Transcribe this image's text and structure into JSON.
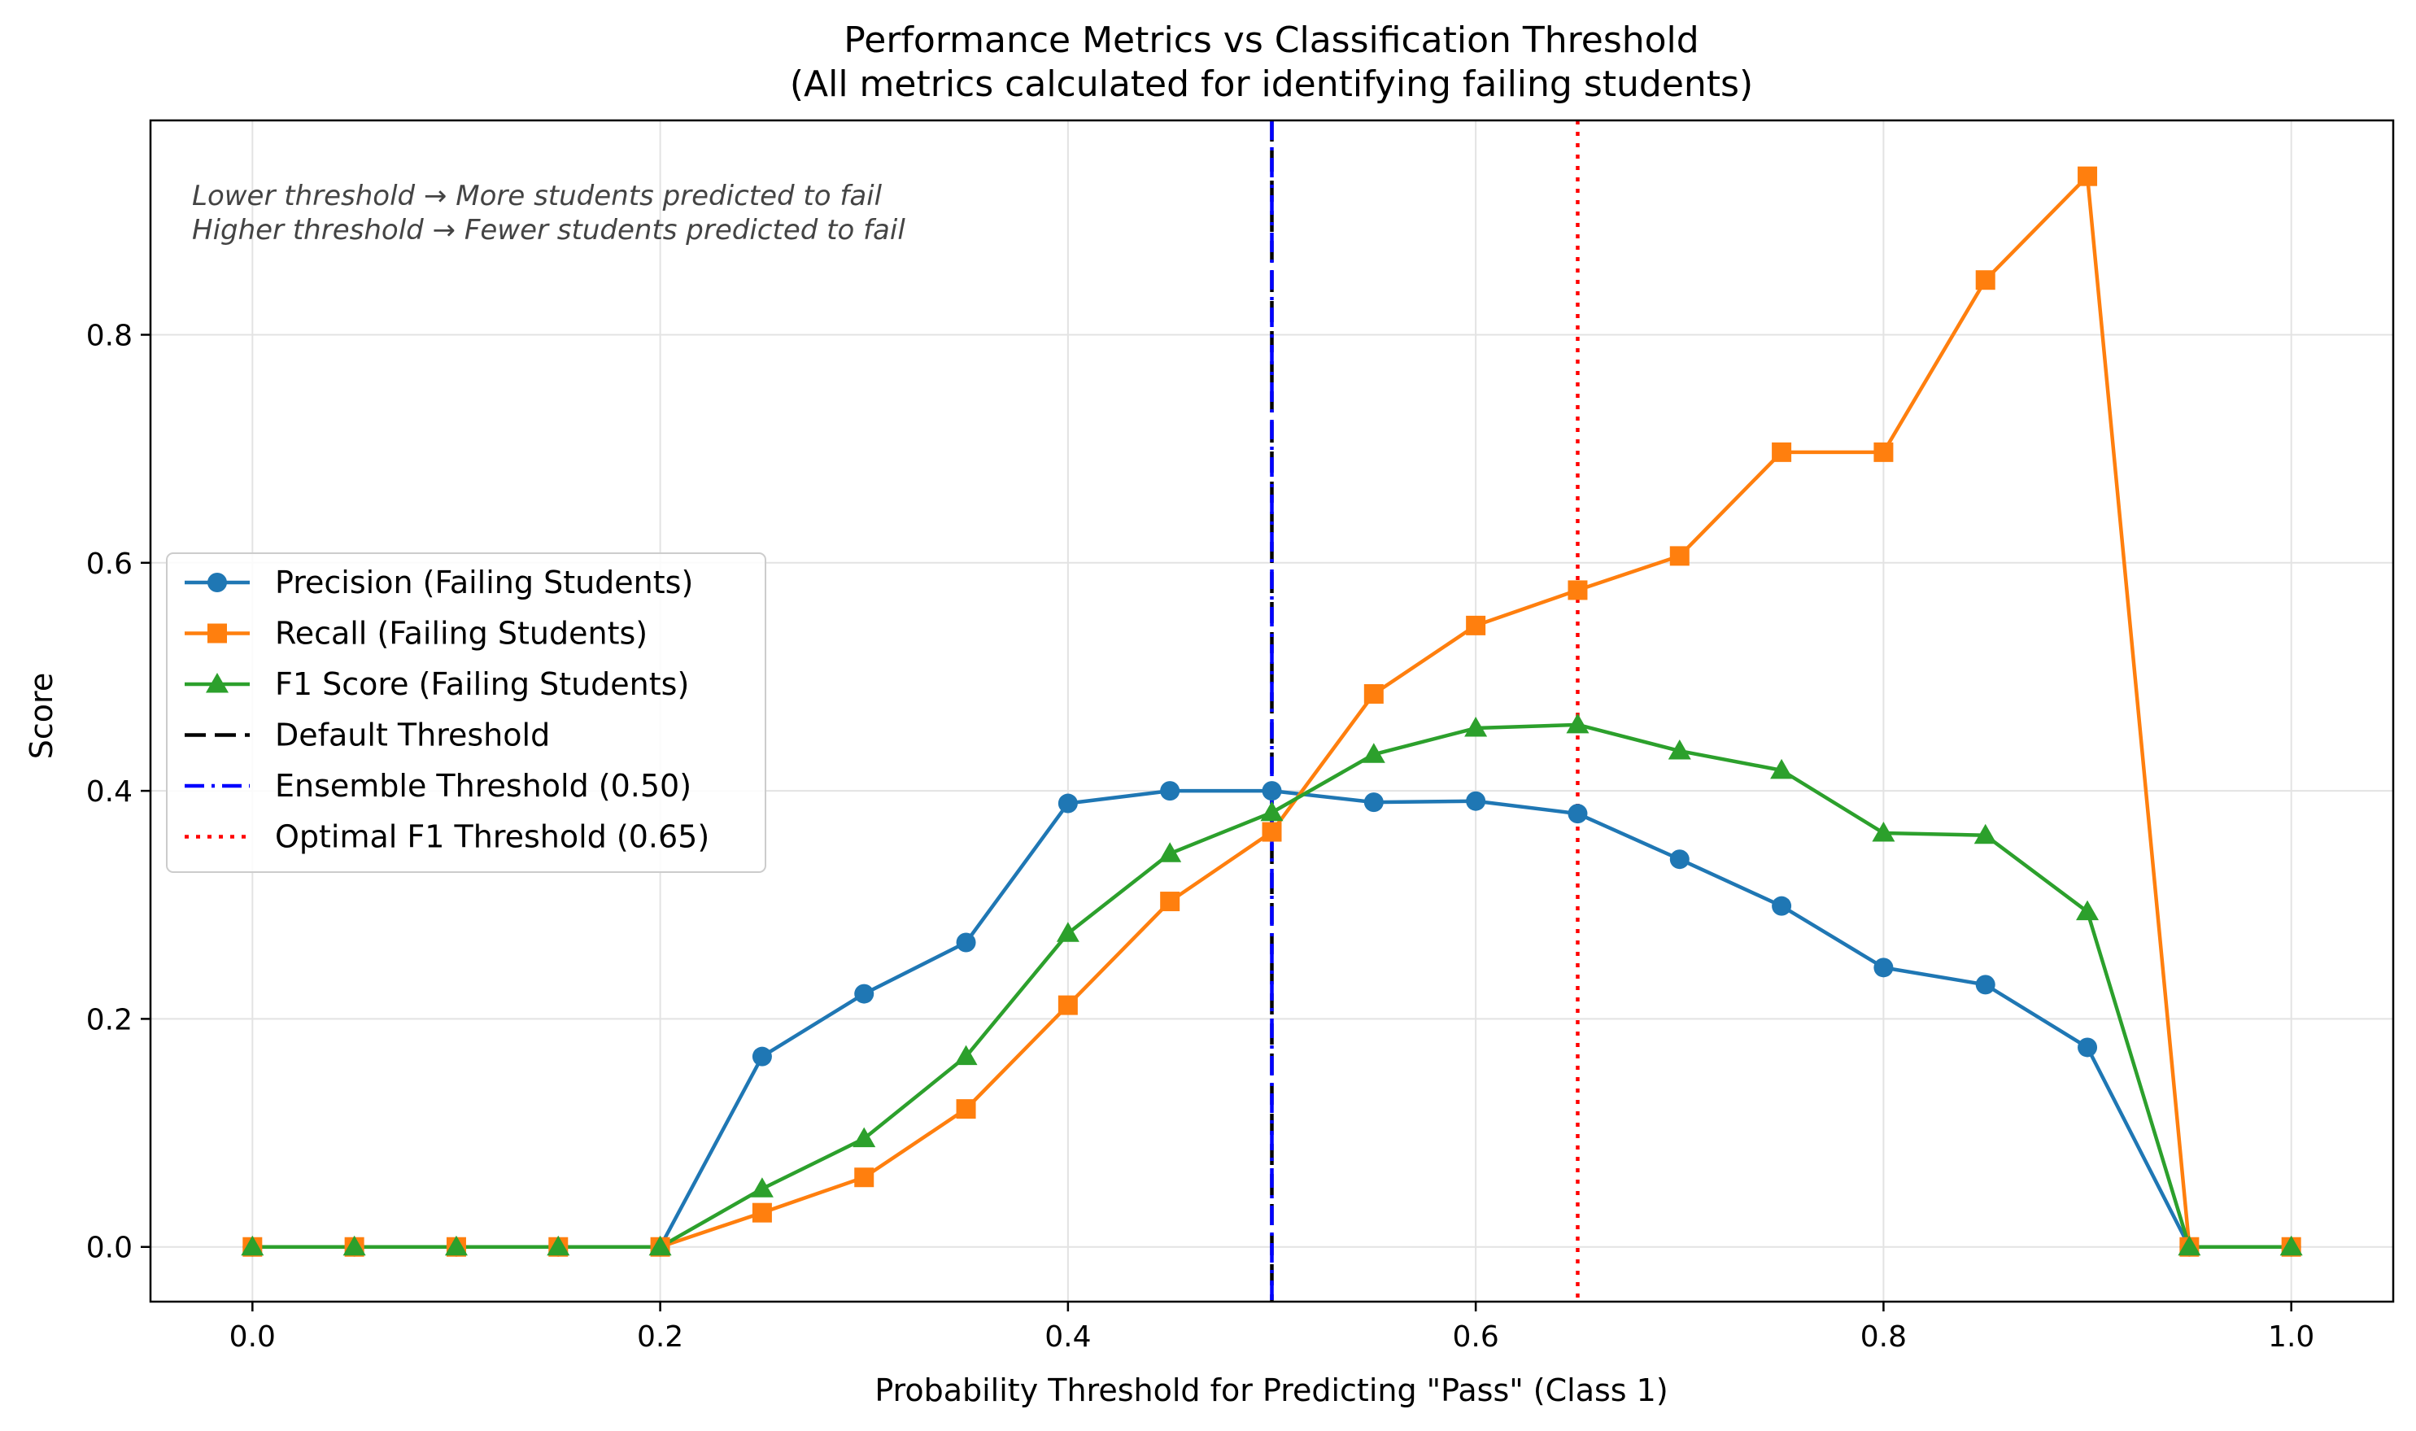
{
  "chart_data": {
    "type": "line",
    "title": "Performance Metrics vs Classification Threshold",
    "subtitle": "(All metrics calculated for identifying failing students)",
    "xlabel": "Probability Threshold for Predicting \"Pass\" (Class 1)",
    "ylabel": "Score",
    "xlim": [
      -0.05,
      1.05
    ],
    "ylim": [
      -0.048,
      0.988
    ],
    "xticks": [
      0.0,
      0.2,
      0.4,
      0.6,
      0.8,
      1.0
    ],
    "yticks": [
      0.0,
      0.2,
      0.4,
      0.6,
      0.8
    ],
    "grid": true,
    "legend_position": "center-left",
    "x": [
      0.0,
      0.05,
      0.1,
      0.15,
      0.2,
      0.25,
      0.3,
      0.35,
      0.4,
      0.45,
      0.5,
      0.55,
      0.6,
      0.65,
      0.7,
      0.75,
      0.8,
      0.85,
      0.9,
      0.95,
      1.0
    ],
    "series": [
      {
        "name": "Precision (Failing Students)",
        "color": "#1f77b4",
        "marker": "circle",
        "values": [
          0,
          0,
          0,
          0,
          0,
          0.167,
          0.222,
          0.267,
          0.389,
          0.4,
          0.4,
          0.39,
          0.391,
          0.38,
          0.34,
          0.299,
          0.245,
          0.23,
          0.175,
          0,
          0
        ]
      },
      {
        "name": "Recall (Failing Students)",
        "color": "#ff7f0e",
        "marker": "square",
        "values": [
          0,
          0,
          0,
          0,
          0,
          0.03,
          0.061,
          0.121,
          0.212,
          0.303,
          0.364,
          0.485,
          0.545,
          0.576,
          0.606,
          0.697,
          0.697,
          0.848,
          0.939,
          0,
          0
        ]
      },
      {
        "name": "F1 Score (Failing Students)",
        "color": "#2ca02c",
        "marker": "triangle",
        "values": [
          0,
          0,
          0,
          0,
          0,
          0.051,
          0.095,
          0.167,
          0.275,
          0.345,
          0.381,
          0.432,
          0.455,
          0.458,
          0.435,
          0.418,
          0.363,
          0.361,
          0.294,
          0,
          0
        ]
      }
    ],
    "reference_lines": [
      {
        "name": "Default Threshold",
        "x": 0.5,
        "color": "#000000",
        "style": "dashed"
      },
      {
        "name": "Ensemble Threshold (0.50)",
        "x": 0.5,
        "color": "#0000ff",
        "style": "dashdot"
      },
      {
        "name": "Optimal F1 Threshold (0.65)",
        "x": 0.65,
        "color": "#ff0000",
        "style": "dotted"
      }
    ],
    "annotations": [
      "Lower threshold → More students predicted to fail",
      "Higher threshold → Fewer students predicted to fail"
    ]
  }
}
